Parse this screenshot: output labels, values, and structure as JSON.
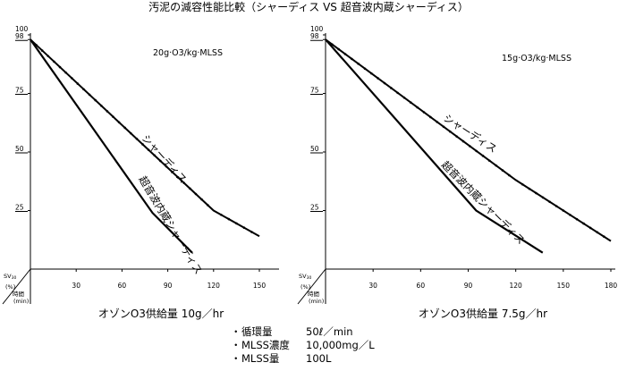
{
  "title": "汚泥の減容性能比較（シャーディス VS 超音波内蔵シャーディス）",
  "y_axis": {
    "label_line1": "SV",
    "label_sub": "30",
    "label_line2": "(%)"
  },
  "x_axis": {
    "label_line1": "時間",
    "label_line2": "(min)"
  },
  "notes": [
    {
      "bullet": "・",
      "label": "循環量",
      "value": "50ℓ／min"
    },
    {
      "bullet": "・",
      "label": "MLSS濃度",
      "value": "10,000mg／L"
    },
    {
      "bullet": "・",
      "label": "MLSS量",
      "value": "100L"
    }
  ],
  "chart_data": [
    {
      "type": "line",
      "condition": "20g·O3/kg·MLSS",
      "xlabel": "オゾンO3供給量 10g／hr",
      "xlim": [
        0,
        160
      ],
      "ylim": [
        0,
        100
      ],
      "x_ticks": [
        30,
        60,
        90,
        120,
        150
      ],
      "y_ticks": [
        100,
        98,
        75,
        50,
        25
      ],
      "series": [
        {
          "name": "シャーディス",
          "x": [
            0,
            120,
            150
          ],
          "y": [
            98,
            25,
            14
          ]
        },
        {
          "name": "超音波内蔵シャーディス",
          "x": [
            0,
            80,
            106
          ],
          "y": [
            98,
            24,
            7
          ]
        }
      ]
    },
    {
      "type": "line",
      "condition": "15g·O3/kg·MLSS",
      "xlabel": "オゾンO3供給量 7.5g／hr",
      "xlim": [
        0,
        180
      ],
      "ylim": [
        0,
        100
      ],
      "x_ticks": [
        30,
        60,
        90,
        120,
        150,
        180
      ],
      "y_ticks": [
        100,
        98,
        75,
        50,
        25
      ],
      "series": [
        {
          "name": "シャーディス",
          "x": [
            0,
            120,
            180
          ],
          "y": [
            98,
            38,
            12
          ]
        },
        {
          "name": "超音波内蔵シャーディス",
          "x": [
            0,
            95,
            137
          ],
          "y": [
            98,
            25,
            7
          ]
        }
      ]
    }
  ]
}
